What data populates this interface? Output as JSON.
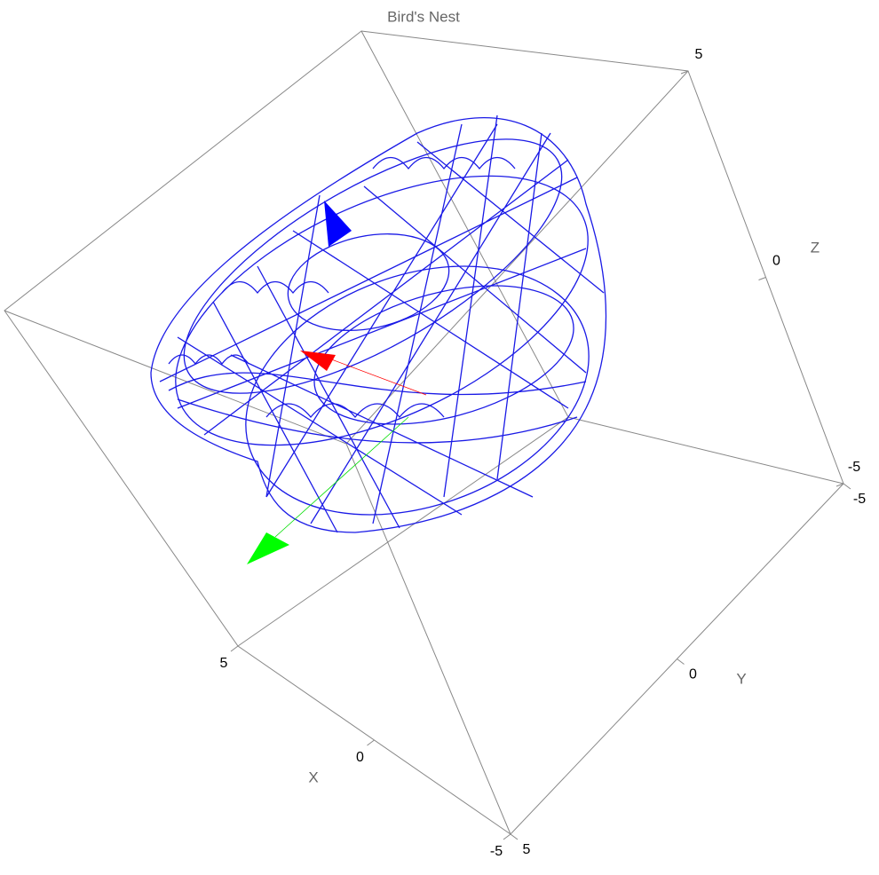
{
  "chart_data": {
    "type": "wireframe3d",
    "title": "Bird's Nest",
    "xlabel": "X",
    "ylabel": "Y",
    "zlabel": "Z",
    "xlim": [
      -5,
      5
    ],
    "ylim": [
      -5,
      5
    ],
    "zlim": [
      -5,
      5
    ],
    "xticks": [
      -5,
      0,
      5
    ],
    "yticks": [
      -5,
      0,
      5
    ],
    "zticks": [
      -5,
      0,
      5
    ],
    "color": "#1a1ae6"
  }
}
